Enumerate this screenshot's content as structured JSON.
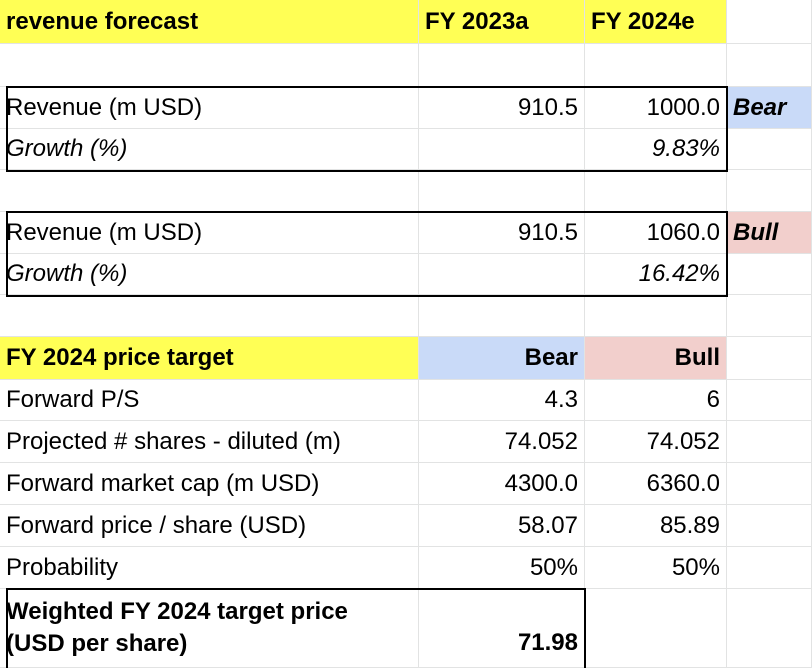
{
  "header": {
    "title": "revenue forecast",
    "col_a": "FY 2023a",
    "col_b": "FY 2024e"
  },
  "bear_block": {
    "revenue_label": "Revenue (m USD)",
    "revenue_2023": "910.5",
    "revenue_2024": "1000.0",
    "tag": "Bear",
    "growth_label": "Growth (%)",
    "growth_value": "9.83%"
  },
  "bull_block": {
    "revenue_label": "Revenue (m USD)",
    "revenue_2023": "910.5",
    "revenue_2024": "1060.0",
    "tag": "Bull",
    "growth_label": "Growth (%)",
    "growth_value": "16.42%"
  },
  "price_target": {
    "title": "FY 2024 price target",
    "bear_header": "Bear",
    "bull_header": "Bull",
    "rows": [
      {
        "label": "Forward P/S",
        "bear": "4.3",
        "bull": "6"
      },
      {
        "label": "Projected # shares - diluted (m)",
        "bear": "74.052",
        "bull": "74.052"
      },
      {
        "label": "Forward market cap (m USD)",
        "bear": "4300.0",
        "bull": "6360.0"
      },
      {
        "label": "Forward price / share (USD)",
        "bear": "58.07",
        "bull": "85.89"
      },
      {
        "label": "Probability",
        "bear": "50%",
        "bull": "50%"
      }
    ],
    "weighted_label_line1": "Weighted FY 2024 target price",
    "weighted_label_line2": "(USD per share)",
    "weighted_value": "71.98"
  },
  "colors": {
    "header_yellow": "#ffff55",
    "bear_blue": "#c9daf8",
    "bull_pink": "#f2cfcc",
    "gridline": "#e2e3e3"
  }
}
